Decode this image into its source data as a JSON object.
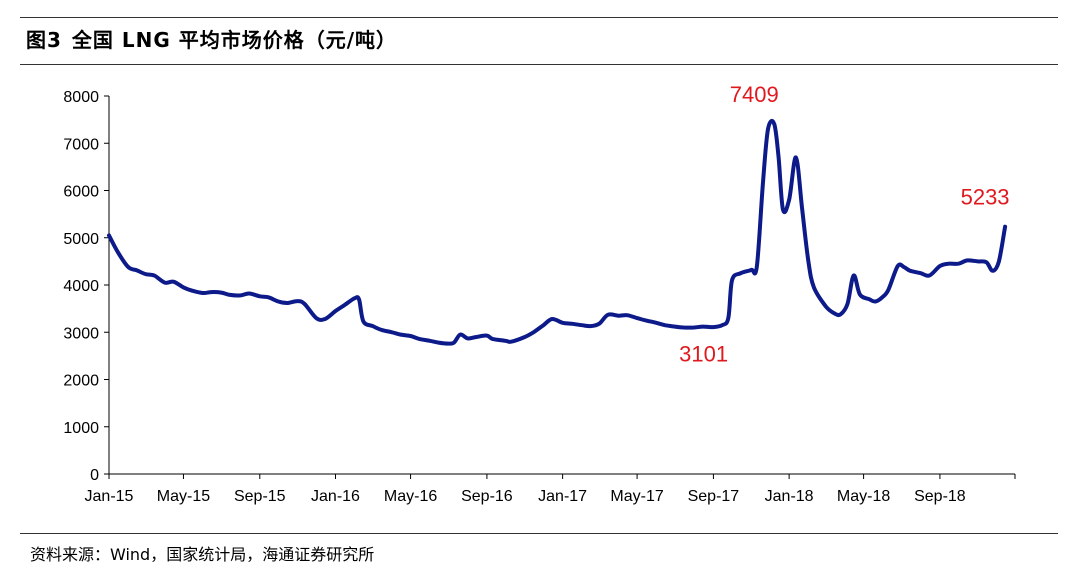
{
  "figure": {
    "number": "图3",
    "title": "全国 LNG 平均市场价格（元/吨）"
  },
  "source_note": "资料来源：Wind，国家统计局，海通证券研究所",
  "chart_data": {
    "type": "line",
    "title": "全国 LNG 平均市场价格（元/吨）",
    "xlabel": "",
    "ylabel": "",
    "ylim": [
      0,
      8000
    ],
    "yticks": [
      0,
      1000,
      2000,
      3000,
      4000,
      5000,
      6000,
      7000,
      8000
    ],
    "xticks": [
      "Jan-15",
      "May-15",
      "Sep-15",
      "Jan-16",
      "May-16",
      "Sep-16",
      "Jan-17",
      "May-17",
      "Sep-17",
      "Jan-18",
      "May-18",
      "Sep-18"
    ],
    "x_range": [
      "2015-01-01",
      "2018-12-31"
    ],
    "grid": false,
    "legend": "none",
    "line_color": "#0d1a8a",
    "annotation_color": "#e0191f",
    "series": [
      {
        "points": [
          [
            "2015-01-01",
            5050
          ],
          [
            "2015-01-15",
            4700
          ],
          [
            "2015-02-01",
            4380
          ],
          [
            "2015-02-15",
            4310
          ],
          [
            "2015-03-01",
            4230
          ],
          [
            "2015-03-15",
            4200
          ],
          [
            "2015-04-01",
            4050
          ],
          [
            "2015-04-15",
            4070
          ],
          [
            "2015-05-01",
            3950
          ],
          [
            "2015-05-15",
            3880
          ],
          [
            "2015-06-01",
            3830
          ],
          [
            "2015-06-15",
            3850
          ],
          [
            "2015-07-01",
            3840
          ],
          [
            "2015-07-15",
            3790
          ],
          [
            "2015-08-01",
            3780
          ],
          [
            "2015-08-15",
            3820
          ],
          [
            "2015-09-01",
            3760
          ],
          [
            "2015-09-15",
            3740
          ],
          [
            "2015-10-01",
            3650
          ],
          [
            "2015-10-15",
            3620
          ],
          [
            "2015-11-01",
            3660
          ],
          [
            "2015-11-12",
            3600
          ],
          [
            "2015-12-01",
            3300
          ],
          [
            "2015-12-15",
            3280
          ],
          [
            "2016-01-01",
            3450
          ],
          [
            "2016-01-15",
            3570
          ],
          [
            "2016-02-01",
            3720
          ],
          [
            "2016-02-08",
            3690
          ],
          [
            "2016-02-15",
            3230
          ],
          [
            "2016-03-01",
            3130
          ],
          [
            "2016-03-15",
            3050
          ],
          [
            "2016-04-01",
            3000
          ],
          [
            "2016-04-15",
            2950
          ],
          [
            "2016-05-01",
            2920
          ],
          [
            "2016-05-15",
            2860
          ],
          [
            "2016-06-01",
            2820
          ],
          [
            "2016-06-15",
            2780
          ],
          [
            "2016-07-01",
            2760
          ],
          [
            "2016-07-10",
            2780
          ],
          [
            "2016-07-20",
            2950
          ],
          [
            "2016-08-01",
            2870
          ],
          [
            "2016-08-15",
            2900
          ],
          [
            "2016-09-01",
            2930
          ],
          [
            "2016-09-10",
            2860
          ],
          [
            "2016-10-01",
            2820
          ],
          [
            "2016-10-10",
            2800
          ],
          [
            "2016-11-01",
            2900
          ],
          [
            "2016-11-15",
            3000
          ],
          [
            "2016-12-01",
            3150
          ],
          [
            "2016-12-15",
            3280
          ],
          [
            "2017-01-01",
            3200
          ],
          [
            "2017-01-15",
            3180
          ],
          [
            "2017-02-01",
            3150
          ],
          [
            "2017-02-15",
            3130
          ],
          [
            "2017-03-01",
            3180
          ],
          [
            "2017-03-15",
            3370
          ],
          [
            "2017-04-01",
            3350
          ],
          [
            "2017-04-15",
            3360
          ],
          [
            "2017-05-01",
            3300
          ],
          [
            "2017-05-15",
            3250
          ],
          [
            "2017-06-01",
            3200
          ],
          [
            "2017-06-15",
            3150
          ],
          [
            "2017-07-01",
            3120
          ],
          [
            "2017-07-15",
            3101
          ],
          [
            "2017-08-01",
            3101
          ],
          [
            "2017-08-15",
            3120
          ],
          [
            "2017-09-01",
            3110
          ],
          [
            "2017-09-15",
            3150
          ],
          [
            "2017-09-25",
            3300
          ],
          [
            "2017-10-01",
            4100
          ],
          [
            "2017-10-15",
            4250
          ],
          [
            "2017-11-01",
            4320
          ],
          [
            "2017-11-10",
            4400
          ],
          [
            "2017-11-20",
            6200
          ],
          [
            "2017-11-28",
            7300
          ],
          [
            "2017-12-08",
            7409
          ],
          [
            "2017-12-15",
            6700
          ],
          [
            "2017-12-22",
            5600
          ],
          [
            "2018-01-01",
            5800
          ],
          [
            "2018-01-12",
            6700
          ],
          [
            "2018-01-22",
            5600
          ],
          [
            "2018-02-01",
            4500
          ],
          [
            "2018-02-10",
            3950
          ],
          [
            "2018-03-01",
            3550
          ],
          [
            "2018-03-15",
            3400
          ],
          [
            "2018-03-25",
            3380
          ],
          [
            "2018-04-05",
            3600
          ],
          [
            "2018-04-15",
            4200
          ],
          [
            "2018-04-25",
            3800
          ],
          [
            "2018-05-10",
            3700
          ],
          [
            "2018-05-20",
            3650
          ],
          [
            "2018-06-01",
            3750
          ],
          [
            "2018-06-10",
            3900
          ],
          [
            "2018-06-25",
            4400
          ],
          [
            "2018-07-05",
            4380
          ],
          [
            "2018-07-15",
            4300
          ],
          [
            "2018-08-01",
            4250
          ],
          [
            "2018-08-15",
            4200
          ],
          [
            "2018-09-01",
            4400
          ],
          [
            "2018-09-15",
            4450
          ],
          [
            "2018-10-01",
            4450
          ],
          [
            "2018-10-15",
            4520
          ],
          [
            "2018-11-01",
            4500
          ],
          [
            "2018-11-15",
            4480
          ],
          [
            "2018-11-25",
            4300
          ],
          [
            "2018-12-05",
            4500
          ],
          [
            "2018-12-15",
            5233
          ]
        ]
      }
    ],
    "annotations": [
      {
        "text": "7409",
        "x": "2017-12-08",
        "y": 7409,
        "position": "above-left"
      },
      {
        "text": "3101",
        "x": "2017-07-15",
        "y": 3101,
        "position": "below"
      },
      {
        "text": "5233",
        "x": "2018-12-15",
        "y": 5233,
        "position": "above-left"
      }
    ]
  }
}
